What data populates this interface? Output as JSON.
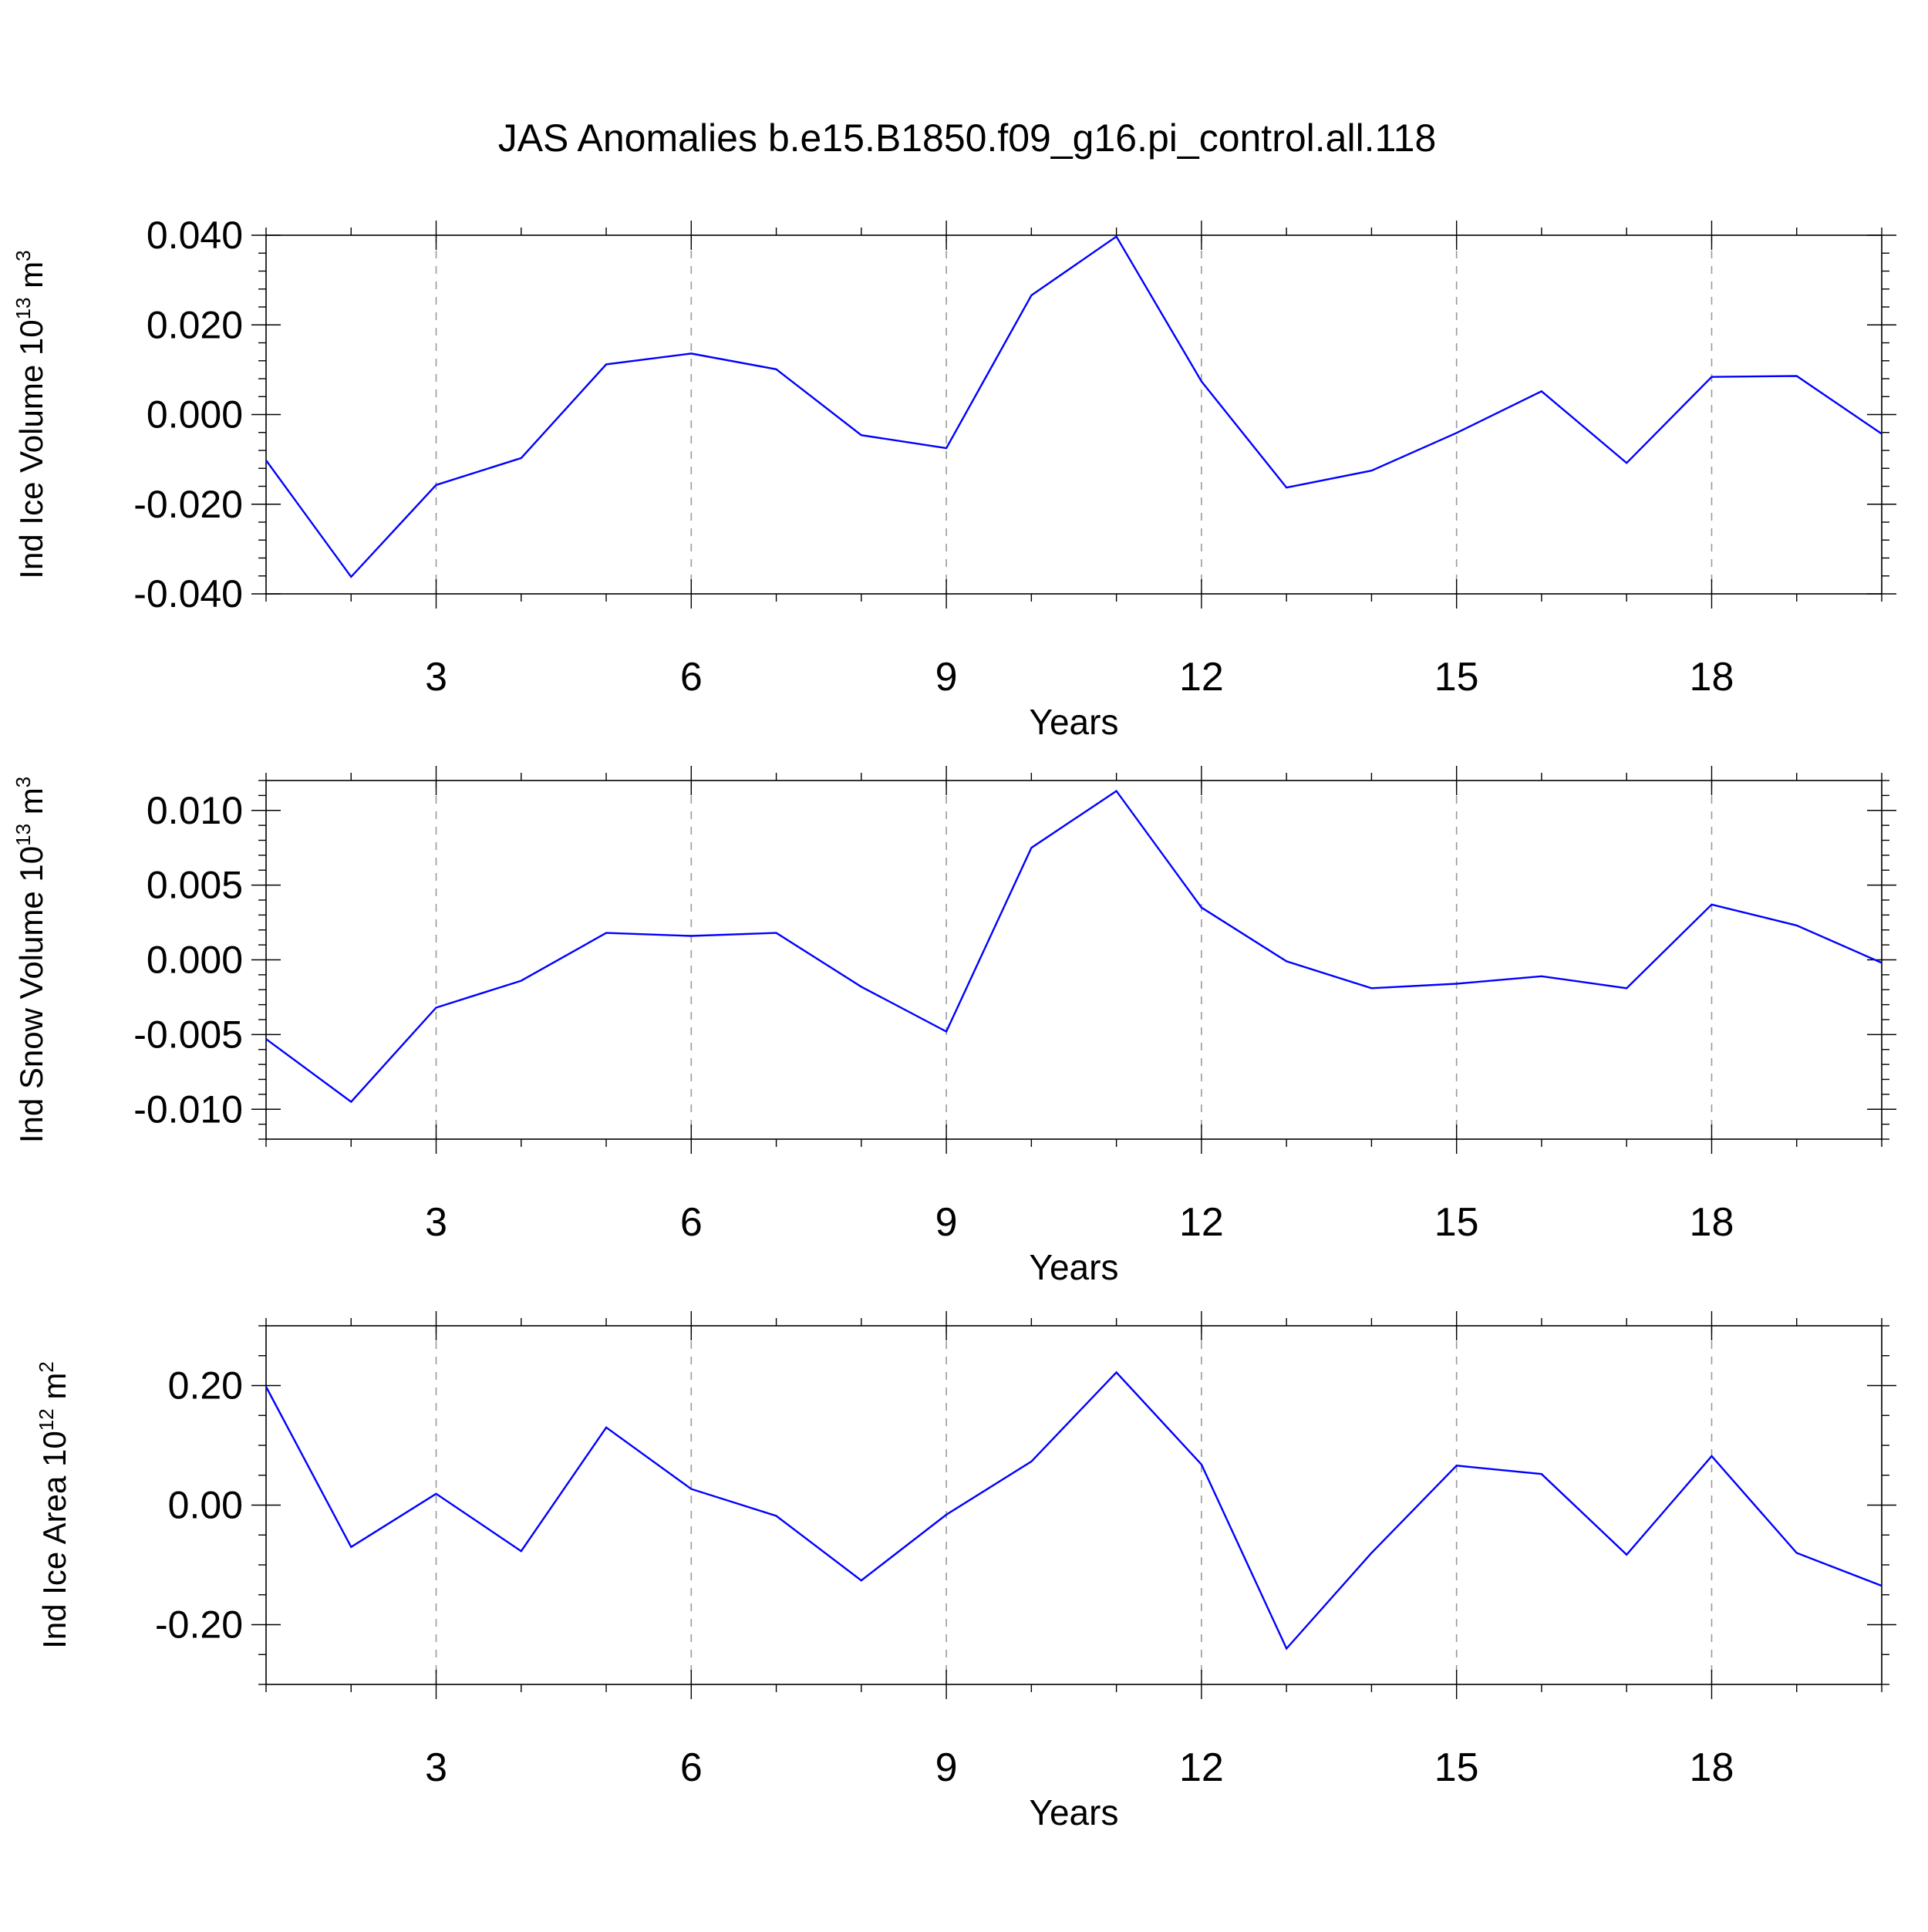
{
  "title": "JAS Anomalies b.e15.B1850.f09_g16.pi_control.all.118",
  "colors": {
    "series": "#0000ff",
    "grid": "#9a9a9a",
    "axis": "#000000"
  },
  "chart_data": [
    {
      "type": "line",
      "ylabel": {
        "main": "Ind Ice Volume 10",
        "exponent": "13",
        "unit": " m",
        "unit_exponent": "3"
      },
      "xlabel": "Years",
      "xlim": [
        1,
        20
      ],
      "ylim": [
        -0.04,
        0.04
      ],
      "xticks": [
        3,
        6,
        9,
        12,
        15,
        18
      ],
      "xtick_labels": [
        "3",
        "6",
        "9",
        "12",
        "15",
        "18"
      ],
      "yticks": [
        -0.04,
        -0.02,
        0.0,
        0.02,
        0.04
      ],
      "ytick_labels": [
        "-0.040",
        "-0.020",
        "0.000",
        "0.020",
        "0.040"
      ],
      "y_minor_step": 0.004,
      "grid": "vertical dashed at labeled years",
      "x": [
        1,
        2,
        3,
        4,
        5,
        6,
        7,
        8,
        9,
        10,
        11,
        12,
        13,
        14,
        15,
        16,
        17,
        18,
        19,
        20
      ],
      "values": [
        -0.0102,
        -0.0362,
        -0.0157,
        -0.0097,
        0.0112,
        0.0136,
        0.0101,
        -0.0046,
        -0.0075,
        0.0266,
        0.0397,
        0.0074,
        -0.0163,
        -0.0125,
        -0.0041,
        0.0052,
        -0.0108,
        0.0084,
        0.0086,
        -0.0043
      ]
    },
    {
      "type": "line",
      "ylabel": {
        "main": "Ind Snow Volume 10",
        "exponent": "13",
        "unit": " m",
        "unit_exponent": "3"
      },
      "xlabel": "Years",
      "xlim": [
        1,
        20
      ],
      "ylim": [
        -0.012,
        0.012
      ],
      "xticks": [
        3,
        6,
        9,
        12,
        15,
        18
      ],
      "xtick_labels": [
        "3",
        "6",
        "9",
        "12",
        "15",
        "18"
      ],
      "yticks": [
        -0.01,
        -0.005,
        0.0,
        0.005,
        0.01
      ],
      "ytick_labels": [
        "-0.010",
        "-0.005",
        "0.000",
        "0.005",
        "0.010"
      ],
      "y_minor_step": 0.001,
      "grid": "vertical dashed at labeled years",
      "x": [
        1,
        2,
        3,
        4,
        5,
        6,
        7,
        8,
        9,
        10,
        11,
        12,
        13,
        14,
        15,
        16,
        17,
        18,
        19,
        20
      ],
      "values": [
        -0.0053,
        -0.0095,
        -0.0032,
        -0.0014,
        0.0018,
        0.0016,
        0.0018,
        -0.0018,
        -0.0048,
        0.0075,
        0.0113,
        0.0035,
        -0.0001,
        -0.0019,
        -0.0016,
        -0.0011,
        -0.0019,
        0.0037,
        0.0023,
        -0.0002
      ]
    },
    {
      "type": "line",
      "ylabel": {
        "main": "Ind Ice Area 10",
        "exponent": "12",
        "unit": " m",
        "unit_exponent": "2"
      },
      "xlabel": "Years",
      "xlim": [
        1,
        20
      ],
      "ylim": [
        -0.3,
        0.3
      ],
      "xticks": [
        3,
        6,
        9,
        12,
        15,
        18
      ],
      "xtick_labels": [
        "3",
        "6",
        "9",
        "12",
        "15",
        "18"
      ],
      "yticks": [
        -0.2,
        0.0,
        0.2
      ],
      "ytick_labels": [
        "-0.20",
        "0.00",
        "0.20"
      ],
      "y_minor_step": 0.05,
      "grid": "vertical dashed at labeled years",
      "x": [
        1,
        2,
        3,
        4,
        5,
        6,
        7,
        8,
        9,
        10,
        11,
        12,
        13,
        14,
        15,
        16,
        17,
        18,
        19,
        20
      ],
      "values": [
        0.198,
        -0.07,
        0.019,
        -0.077,
        0.13,
        0.027,
        -0.018,
        -0.126,
        -0.016,
        0.073,
        0.222,
        0.068,
        -0.24,
        -0.08,
        0.066,
        0.052,
        -0.083,
        0.082,
        -0.08,
        -0.135
      ]
    }
  ]
}
